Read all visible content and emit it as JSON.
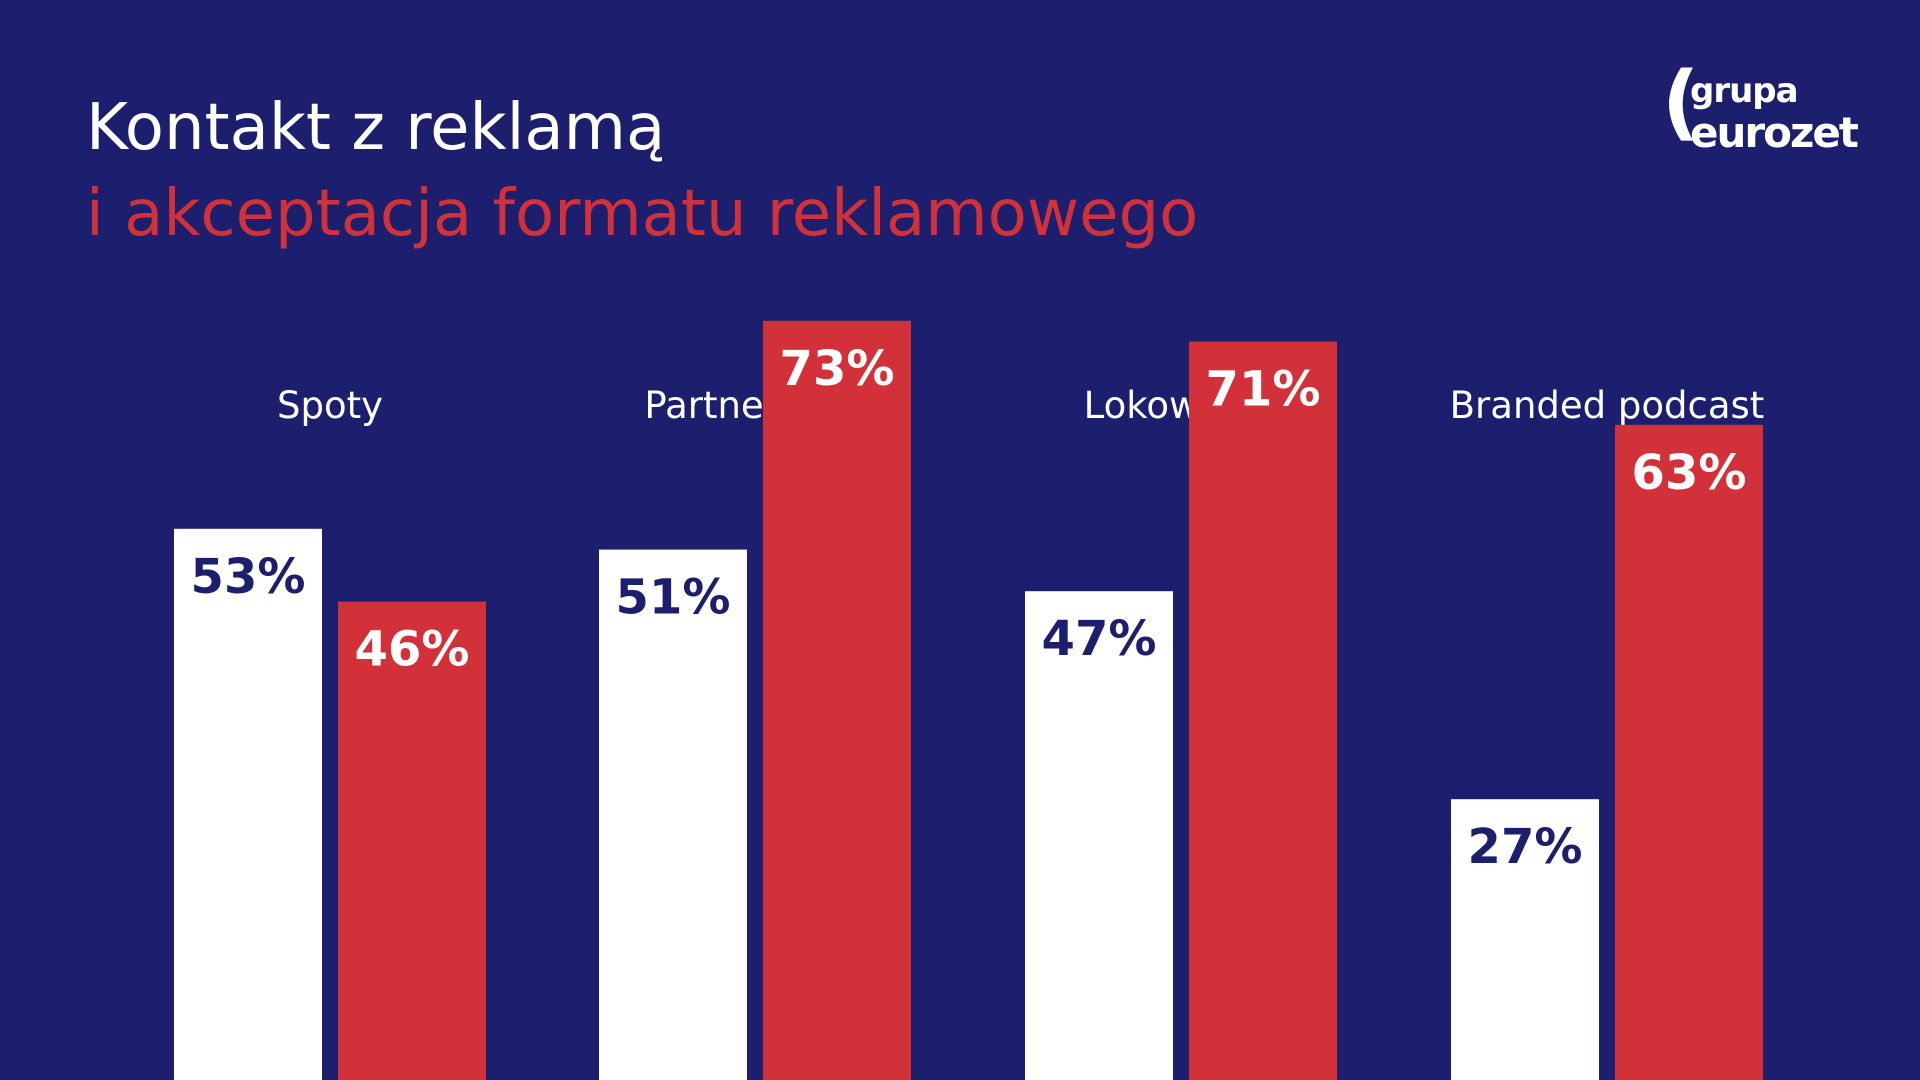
{
  "title": {
    "line1": "Kontakt z reklamą",
    "line2": "i akceptacja formatu reklamowego"
  },
  "logo": {
    "paren": "(",
    "top": "grupa",
    "bottom": "eurozet"
  },
  "colors": {
    "background": "#1c1f6e",
    "accent_red": "#d2313a",
    "white": "#ffffff"
  },
  "chart_data": {
    "type": "bar",
    "categories": [
      "Spoty",
      "Partnerstwo",
      "Lokowanie",
      "Branded podcast"
    ],
    "series": [
      {
        "values": [
          53,
          51,
          47,
          27
        ],
        "color": "#ffffff",
        "label_color": "#1c1f6e"
      },
      {
        "values": [
          46,
          73,
          71,
          63
        ],
        "color": "#d2313a",
        "label_color": "#ffffff"
      }
    ],
    "value_suffix": "%",
    "ylim": [
      0,
      100
    ],
    "grid": false,
    "legend": "none",
    "title": "",
    "xlabel": "",
    "ylabel": ""
  }
}
